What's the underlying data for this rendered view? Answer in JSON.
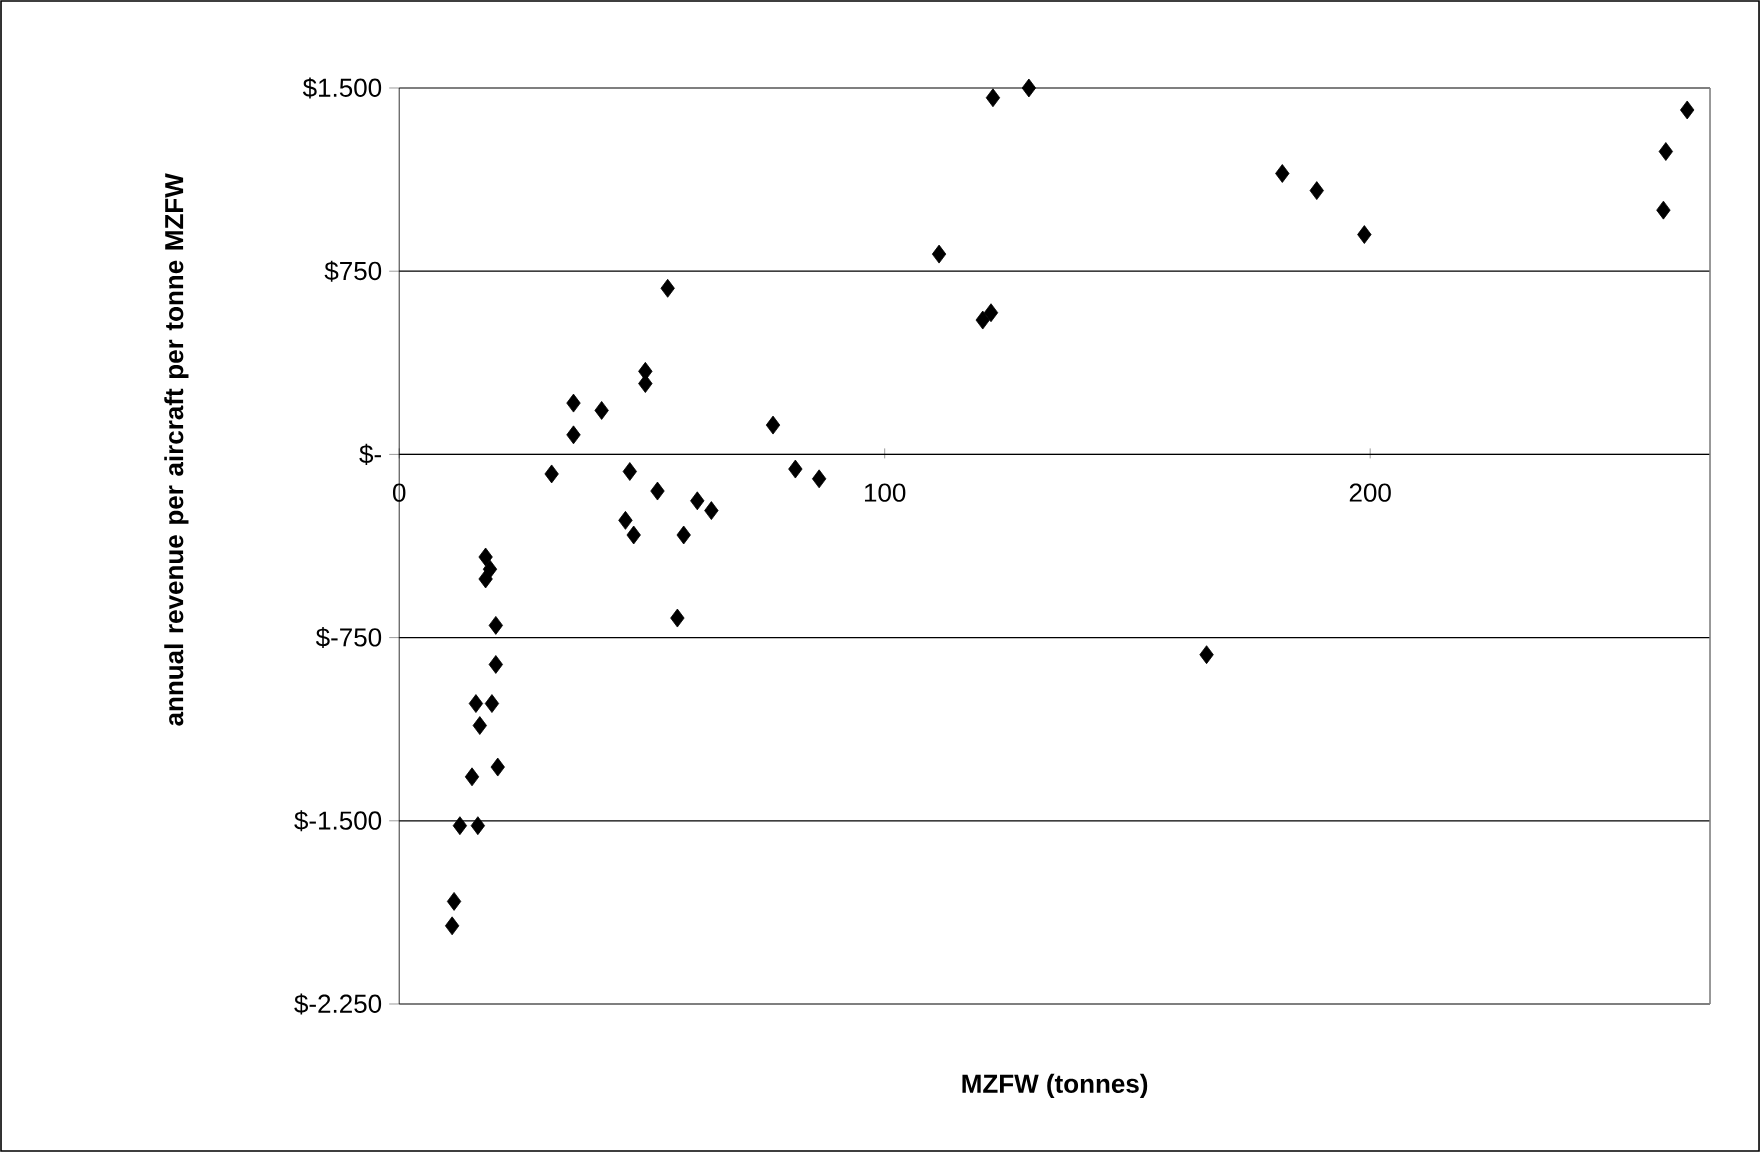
{
  "chart_data": {
    "type": "scatter",
    "xlabel": "MZFW (tonnes)",
    "ylabel": "annual revenue per aircraft per tonne MZFW",
    "xlim": [
      0,
      270
    ],
    "ylim": [
      -2250,
      1500
    ],
    "xticks": [
      0,
      100,
      200
    ],
    "yticks": [
      {
        "value": -2250,
        "label": "$-2.250"
      },
      {
        "value": -1500,
        "label": "$-1.500"
      },
      {
        "value": -750,
        "label": "$-750"
      },
      {
        "value": 0,
        "label": "$-"
      },
      {
        "value": 750,
        "label": "$750"
      },
      {
        "value": 1500,
        "label": "$1.500"
      }
    ],
    "grid": "y",
    "marker": "diamond",
    "series": [
      {
        "color": "#000000",
        "x": [
          10.9,
          11.3,
          12.5,
          16.2,
          15.0,
          20.3,
          16.6,
          15.8,
          19.1,
          19.9,
          19.9,
          17.8,
          18.7,
          17.8,
          57.3,
          58.6,
          122.3,
          129.7,
          111.2,
          121.9,
          120.2,
          55.3,
          50.7,
          50.7,
          35.9,
          41.7,
          35.9,
          77.0,
          31.4,
          47.5,
          53.2,
          81.6,
          86.5,
          61.4,
          64.3,
          46.6,
          48.3,
          181.9,
          189.0,
          198.8,
          265.3,
          260.9,
          260.4,
          166.3
        ],
        "values": [
          -1930,
          -1830,
          -1520,
          -1520,
          -1320,
          -1280,
          -1110,
          -1020,
          -1020,
          -860,
          -700,
          -510,
          -470,
          -420,
          -670,
          -330,
          1460,
          1500,
          820,
          580,
          550,
          680,
          340,
          290,
          210,
          180,
          80,
          120,
          -80,
          -70,
          -150,
          -60,
          -100,
          -190,
          -230,
          -270,
          -330,
          1150,
          1080,
          900,
          1410,
          1240,
          1000,
          -820
        ]
      }
    ]
  }
}
